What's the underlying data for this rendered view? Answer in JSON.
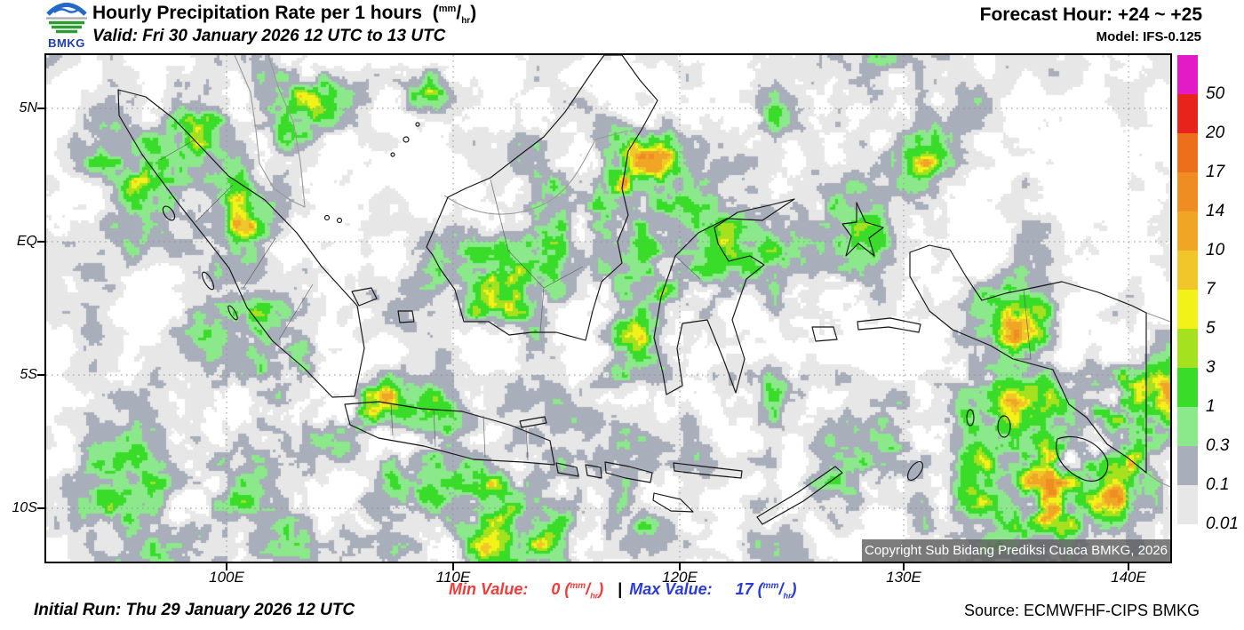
{
  "header": {
    "logo_text": "BMKG",
    "title": "Hourly Precipitation Rate per 1 hours",
    "unit": {
      "open": "(",
      "sup": "mm",
      "slash": "/",
      "sub": "hr",
      "close": ")"
    },
    "valid_line": "Valid: Fri 30 January 2026 12 UTC to 13 UTC",
    "forecast_hour": "Forecast Hour: +24 ~ +25",
    "model": "Model: IFS-0.125"
  },
  "map": {
    "x_ticks": [
      "100E",
      "110E",
      "120E",
      "130E",
      "140E"
    ],
    "y_ticks": [
      "5N",
      "EQ",
      "5S",
      "10S"
    ],
    "copyright": "Copyright Sub Bidang Prediksi Cuaca BMKG, 2026"
  },
  "legend": {
    "labels_top_to_bottom": [
      "50",
      "20",
      "17",
      "14",
      "10",
      "7",
      "5",
      "3",
      "1",
      "0.3",
      "0.1",
      "0.01"
    ],
    "colors_top_to_bottom": [
      "#E21BC7",
      "#E8231C",
      "#ED6F1B",
      "#EF8D22",
      "#F0A525",
      "#F0C62A",
      "#F2F219",
      "#A5E11E",
      "#39DC28",
      "#8BE88B",
      "#A8AEBA",
      "#E7E7E7"
    ]
  },
  "footer": {
    "initial_run": "Initial Run: Thu 29 January 2026 12 UTC",
    "min_label": "Min Value:",
    "min_value": "0",
    "separator": "|",
    "max_label": "Max Value:",
    "max_value": "17",
    "unit": {
      "open": "(",
      "sup": "mm",
      "slash": "/",
      "sub": "hr",
      "close": ")"
    },
    "source": "Source: ECMWFHF-CIPS BMKG"
  },
  "chart_data": {
    "type": "heatmap",
    "title": "Hourly Precipitation Rate per 1 hours (mm/hr)",
    "valid": "Fri 30 January 2026 12 UTC to 13 UTC",
    "forecast_hour": "+24 ~ +25",
    "model": "IFS-0.125",
    "initial_run": "Thu 29 January 2026 12 UTC",
    "region": "Indonesia",
    "xlabel_ticks": [
      "100E",
      "110E",
      "120E",
      "130E",
      "140E"
    ],
    "ylabel_ticks": [
      "5N",
      "EQ",
      "5S",
      "10S"
    ],
    "legend_levels_mm_per_hr": [
      0.01,
      0.1,
      0.3,
      1,
      3,
      5,
      7,
      10,
      14,
      17,
      20,
      50
    ],
    "legend_colors_low_to_high": [
      "#E7E7E7",
      "#A8AEBA",
      "#8BE88B",
      "#39DC28",
      "#A5E11E",
      "#F2F219",
      "#F0C62A",
      "#F0A525",
      "#EF8D22",
      "#ED6F1B",
      "#E8231C",
      "#E21BC7"
    ],
    "min_value_mm_per_hr": 0,
    "max_value_mm_per_hr": 17,
    "grid": "dotted, every 5 degrees",
    "legend_position": "right",
    "source": "ECMWFHF-CIPS BMKG"
  }
}
